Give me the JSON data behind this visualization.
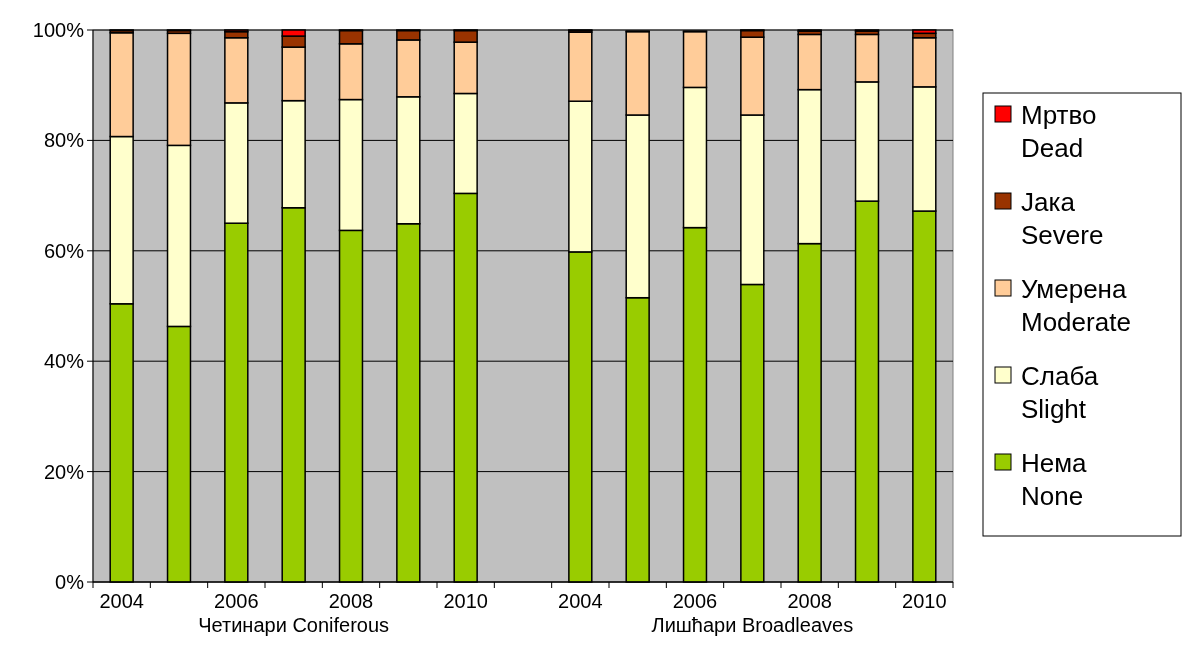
{
  "chart_data": {
    "type": "bar",
    "stacked": true,
    "categories": [
      "2004",
      null,
      "2006",
      null,
      "2008",
      null,
      "2010",
      null,
      "2004",
      null,
      "2006",
      null,
      "2008",
      null,
      "2010"
    ],
    "series": [
      {
        "name": "Нема None",
        "color": "#99cc00",
        "values": [
          50.4,
          46.3,
          65,
          67.8,
          63.7,
          64.9,
          70.4,
          null,
          59.8,
          51.5,
          64.2,
          53.9,
          61.3,
          69,
          67.2
        ]
      },
      {
        "name": "Слаба Slight",
        "color": "#ffffcc",
        "values": [
          30.3,
          32.8,
          21.8,
          19.4,
          23.7,
          23,
          18.1,
          null,
          27.3,
          33.1,
          25.4,
          30.7,
          27.9,
          21.6,
          22.5
        ]
      },
      {
        "name": "Умерена Moderate",
        "color": "#ffcc99",
        "values": [
          18.8,
          20.3,
          11.8,
          9.7,
          10.1,
          10.3,
          9.3,
          null,
          12.5,
          15.1,
          10.1,
          14.1,
          10,
          8.6,
          8.9
        ]
      },
      {
        "name": "Јака Severe",
        "color": "#993300",
        "values": [
          0.4,
          0.5,
          1.1,
          2,
          2.4,
          1.7,
          2.1,
          null,
          0.3,
          null,
          null,
          1.2,
          0.6,
          0.6,
          0.8
        ]
      },
      {
        "name": "Мртво Dead",
        "color": "#ff0000",
        "values": [
          0.1,
          0.1,
          0.3,
          1.1,
          0.1,
          0.1,
          0.1,
          null,
          0.1,
          0.1,
          0.1,
          0.1,
          0.2,
          0.2,
          0.6
        ]
      }
    ],
    "ylim": [
      0,
      100
    ],
    "yticks": [
      {
        "value": 0,
        "label": "0%"
      },
      {
        "value": 20,
        "label": "20%"
      },
      {
        "value": 40,
        "label": "40%"
      },
      {
        "value": 60,
        "label": "60%"
      },
      {
        "value": 80,
        "label": "80%"
      },
      {
        "value": 100,
        "label": "100%"
      }
    ],
    "grid": "y",
    "legend": "right",
    "annotations": [
      "Четинари Coniferous",
      "Лишћари Broadleaves"
    ]
  }
}
